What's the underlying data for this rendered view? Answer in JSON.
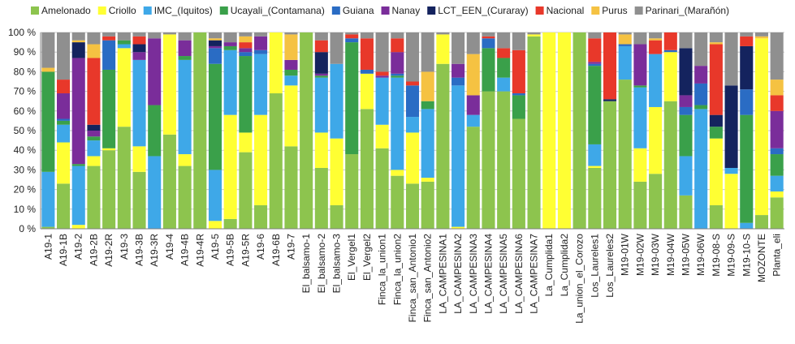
{
  "chart_data": {
    "type": "bar",
    "stacked": true,
    "title": "",
    "xlabel": "",
    "ylabel": "",
    "ylim": [
      0,
      100
    ],
    "yticks": [
      "0 %",
      "10 %",
      "20 %",
      "30 %",
      "40 %",
      "50 %",
      "60 %",
      "70 %",
      "80 %",
      "90 %",
      "100 %"
    ],
    "grid": true,
    "legend_position": "top",
    "categories": [
      "A19-1",
      "A19-1B",
      "A19-2",
      "A19-2B",
      "A19-2R",
      "A19-3",
      "A19-3B",
      "A19-3R",
      "A19-4",
      "A19-4B",
      "A19-4R",
      "A19-5",
      "A19-5B",
      "A19-5R",
      "A19-6",
      "A19-6B",
      "A19-7",
      "El_balsamo-1",
      "El_balsamo-2",
      "El_balsamo-3",
      "El_Vergel1",
      "El_Vergel2",
      "Finca_la_union1",
      "Finca_la_union2",
      "Finca_san_Antonio1",
      "Finca_san_Antonio2",
      "LA_CAMPESINA1",
      "LA_CAMPESINA2",
      "LA_CAMPESINA3",
      "LA_CAMPESINA4",
      "LA_CAMPESINA5",
      "LA_CAMPESINA6",
      "LA_CAMPESINA7",
      "La_Cumplida1",
      "La_Cumplida2",
      "La_union_el_Corozo",
      "Los_Laureles1",
      "Los_Laureles2",
      "M19-01W",
      "M19-02W",
      "M19-03W",
      "M19-04W",
      "M19-05W",
      "M19-06W",
      "M19-08-S",
      "M19-09-S",
      "M19-10-S",
      "MOZONTE",
      "Planta_eli"
    ],
    "series": [
      {
        "name": "Amelonado",
        "color": "#8dc44e",
        "values": [
          1,
          23,
          0,
          32,
          40,
          52,
          29,
          0,
          48,
          32,
          100,
          0,
          5,
          39,
          12,
          69,
          42,
          100,
          31,
          12,
          38,
          61,
          41,
          27,
          23,
          24,
          84,
          0,
          52,
          70,
          70,
          56,
          98,
          0,
          0,
          100,
          31,
          65,
          76,
          24,
          28,
          65,
          17,
          0,
          12,
          0,
          0,
          7,
          16
        ]
      },
      {
        "name": "Criollo",
        "color": "#ffff33",
        "values": [
          0,
          21,
          2,
          5,
          1,
          40,
          13,
          0,
          51,
          6,
          0,
          4,
          53,
          10,
          46,
          31,
          31,
          0,
          18,
          34,
          0,
          18,
          12,
          3,
          26,
          2,
          15,
          1,
          0,
          0,
          0,
          0,
          1,
          100,
          100,
          0,
          1,
          0,
          0,
          17,
          34,
          25,
          0,
          0,
          34,
          28,
          0,
          90,
          3
        ]
      },
      {
        "name": "IMC_(Iquitos)",
        "color": "#3ea8e8",
        "values": [
          28,
          9,
          30,
          8,
          0,
          2,
          44,
          37,
          0,
          48,
          0,
          26,
          33,
          0,
          31,
          0,
          5,
          0,
          28,
          38,
          0,
          0,
          24,
          47,
          8,
          35,
          0,
          72,
          6,
          0,
          7,
          0,
          0,
          0,
          0,
          0,
          11,
          0,
          17,
          31,
          27,
          0,
          20,
          61,
          0,
          3,
          3,
          0,
          8
        ]
      },
      {
        "name": "Ucayali_(Contamana)",
        "color": "#3aa04a",
        "values": [
          51,
          2,
          1,
          2,
          40,
          2,
          0,
          26,
          0,
          2,
          0,
          54,
          2,
          39,
          0,
          0,
          3,
          0,
          1,
          0,
          57,
          0,
          0,
          1,
          0,
          4,
          0,
          0,
          0,
          22,
          10,
          12,
          0,
          0,
          0,
          0,
          40,
          0,
          0,
          1,
          0,
          0,
          21,
          2,
          6,
          0,
          55,
          0,
          11
        ]
      },
      {
        "name": "Guiana",
        "color": "#2a6cc4",
        "values": [
          0,
          1,
          0,
          0,
          15,
          0,
          0,
          0,
          0,
          0,
          0,
          8,
          0,
          2,
          2,
          0,
          0,
          0,
          0,
          0,
          2,
          2,
          0,
          1,
          16,
          0,
          0,
          4,
          0,
          5,
          0,
          1,
          0,
          0,
          0,
          0,
          1,
          0,
          1,
          0,
          0,
          1,
          4,
          11,
          0,
          0,
          13,
          0,
          3
        ]
      },
      {
        "name": "Nanay",
        "color": "#7a2d9a",
        "values": [
          0,
          13,
          54,
          3,
          0,
          0,
          4,
          34,
          0,
          8,
          0,
          1,
          2,
          2,
          7,
          0,
          5,
          0,
          1,
          0,
          0,
          0,
          1,
          11,
          0,
          0,
          0,
          7,
          10,
          0,
          0,
          0,
          0,
          0,
          0,
          0,
          1,
          0,
          0,
          21,
          0,
          0,
          6,
          9,
          0,
          0,
          0,
          0,
          19
        ]
      },
      {
        "name": "LCT_EEN_(Curaray)",
        "color": "#14235e",
        "values": [
          0,
          0,
          8,
          3,
          0,
          0,
          4,
          0,
          0,
          0,
          0,
          3,
          0,
          0,
          0,
          0,
          0,
          0,
          11,
          0,
          0,
          0,
          0,
          0,
          0,
          0,
          0,
          0,
          0,
          0,
          0,
          0,
          0,
          0,
          0,
          0,
          0,
          1,
          0,
          0,
          0,
          0,
          24,
          0,
          6,
          42,
          22,
          0,
          0
        ]
      },
      {
        "name": "Nacional",
        "color": "#e8382a",
        "values": [
          0,
          7,
          0,
          34,
          2,
          0,
          4,
          0,
          0,
          0,
          0,
          0,
          0,
          3,
          0,
          0,
          0,
          0,
          6,
          0,
          2,
          16,
          2,
          7,
          2,
          0,
          0,
          0,
          0,
          1,
          5,
          22,
          0,
          0,
          0,
          0,
          12,
          34,
          0,
          0,
          7,
          9,
          0,
          0,
          36,
          0,
          5,
          0,
          8
        ]
      },
      {
        "name": "Purus",
        "color": "#f5c242",
        "values": [
          2,
          0,
          1,
          7,
          0,
          0,
          0,
          0,
          0,
          0,
          0,
          1,
          0,
          3,
          0,
          0,
          13,
          0,
          0,
          0,
          0,
          0,
          0,
          0,
          0,
          15,
          0,
          0,
          21,
          0,
          0,
          0,
          0,
          0,
          0,
          0,
          0,
          0,
          5,
          0,
          1,
          0,
          0,
          0,
          1,
          0,
          0,
          1,
          8
        ]
      },
      {
        "name": "Parinari_(Marañón)",
        "color": "#8f8f8f",
        "values": [
          18,
          24,
          4,
          6,
          2,
          4,
          2,
          3,
          1,
          4,
          0,
          3,
          5,
          2,
          2,
          0,
          1,
          0,
          4,
          16,
          1,
          3,
          20,
          3,
          25,
          20,
          1,
          16,
          11,
          2,
          8,
          9,
          1,
          0,
          0,
          0,
          3,
          0,
          1,
          6,
          3,
          0,
          8,
          17,
          5,
          27,
          2,
          2,
          24
        ]
      }
    ]
  }
}
